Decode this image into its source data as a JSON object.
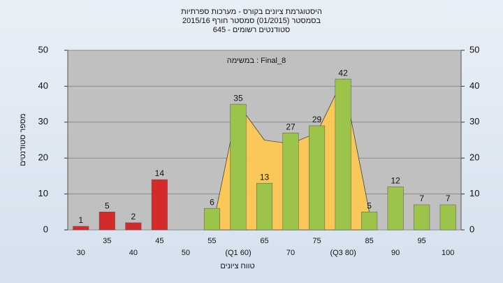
{
  "chart_data": {
    "type": "bar",
    "title": "היסטוגרמת ציונים בקורס - מערכות ספרתיות",
    "subtitle": [
      "בסמסטר (01/2015) סמסטר חורף 2015/16",
      "סטודנטים רשומים - 645"
    ],
    "annotation": "במשימה : Final_8",
    "x_label": "טווח ציונים",
    "y_label": "מספר סטודנטים",
    "categories": [
      "30",
      "35",
      "40",
      "45",
      "50",
      "55",
      "(Q1 60)",
      "65",
      "70",
      "75",
      "(Q3 80)",
      "85",
      "90",
      "95",
      "100"
    ],
    "values": [
      1,
      5,
      2,
      14,
      null,
      6,
      35,
      13,
      27,
      29,
      42,
      5,
      12,
      7,
      7
    ],
    "colors": [
      "#d42a2a",
      "#d42a2a",
      "#d42a2a",
      "#d42a2a",
      "#d42a2a",
      "#9cc44a",
      "#9cc44a",
      "#9cc44a",
      "#9cc44a",
      "#9cc44a",
      "#9cc44a",
      "#9cc44a",
      "#9cc44a",
      "#9cc44a",
      "#9cc44a"
    ],
    "area": {
      "values": [
        null,
        null,
        null,
        null,
        null,
        0,
        35,
        25,
        24,
        27,
        42,
        5,
        null,
        null,
        null
      ],
      "color": "#ffc94d"
    },
    "ylim": [
      0,
      50
    ],
    "yticks": [
      0,
      10,
      20,
      30,
      40,
      50
    ],
    "y2lim": [
      0,
      50
    ],
    "y2ticks": [
      0,
      10,
      20,
      30,
      40,
      50
    ],
    "grid": true
  }
}
